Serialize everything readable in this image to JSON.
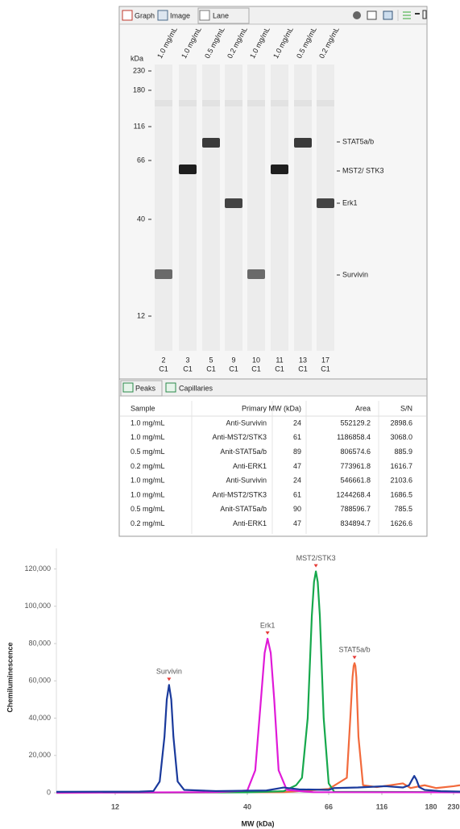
{
  "toolbar": {
    "tabs": [
      "Graph",
      "Image",
      "Lane"
    ]
  },
  "lane_view": {
    "unit": "kDa",
    "ladder": [
      230,
      180,
      116,
      66,
      40,
      12
    ],
    "lanes": [
      {
        "label": "1.0 mg/mL",
        "number": "2",
        "capillary": "C1"
      },
      {
        "label": "1.0 mg/mL",
        "number": "3",
        "capillary": "C1"
      },
      {
        "label": "0.5 mg/mL",
        "number": "5",
        "capillary": "C1"
      },
      {
        "label": "0.2 mg/mL",
        "number": "9",
        "capillary": "C1"
      },
      {
        "label": "1.0 mg/mL",
        "number": "10",
        "capillary": "C1"
      },
      {
        "label": "1.0 mg/mL",
        "number": "11",
        "capillary": "C1"
      },
      {
        "label": "0.5 mg/mL",
        "number": "13",
        "capillary": "C1"
      },
      {
        "label": "0.2 mg/mL",
        "number": "17",
        "capillary": "C1"
      }
    ],
    "targets": [
      "STAT5a/b",
      "MST2/ STK3",
      "Erk1",
      "Survivin"
    ]
  },
  "results": {
    "tabs": [
      "Peaks",
      "Capillaries"
    ],
    "columns": [
      "Sample",
      "Primary",
      "MW (kDa)",
      "Area",
      "S/N"
    ],
    "rows": [
      [
        "1.0 mg/mL",
        "Anti-Survivin",
        "24",
        "552129.2",
        "2898.6"
      ],
      [
        "1.0 mg/mL",
        "Anti-MST2/STK3",
        "61",
        "1186858.4",
        "3068.0"
      ],
      [
        "0.5 mg/mL",
        "Anit-STAT5a/b",
        "89",
        "806574.6",
        "885.9"
      ],
      [
        "0.2 mg/mL",
        "Anti-ERK1",
        "47",
        "773961.8",
        "1616.7"
      ],
      [
        "1.0 mg/mL",
        "Anti-Survivin",
        "24",
        "546661.8",
        "2103.6"
      ],
      [
        "1.0 mg/mL",
        "Anti-MST2/STK3",
        "61",
        "1244268.4",
        "1686.5"
      ],
      [
        "0.5 mg/mL",
        "Anit-STAT5a/b",
        "90",
        "788596.7",
        "785.5"
      ],
      [
        "0.2 mg/mL",
        "Anti-ERK1",
        "47",
        "834894.7",
        "1626.6"
      ]
    ]
  },
  "chart_data": {
    "type": "line",
    "x_label": "MW (kDa)",
    "y_label": "Chemiluminescence",
    "xlim": [
      7,
      246
    ],
    "xticks": [
      12,
      40,
      66,
      116,
      180,
      230
    ],
    "ylim": [
      0,
      125000
    ],
    "yticks": [
      0,
      {
        "value": 20000,
        "label": "20,000"
      },
      {
        "value": 40000,
        "label": "40,000"
      },
      {
        "value": 60000,
        "label": "60,000"
      },
      {
        "value": 80000,
        "label": "80,000"
      },
      {
        "value": 100000,
        "label": "100,000"
      },
      {
        "value": 120000,
        "label": "120,000"
      }
    ],
    "grid": false,
    "series": [
      {
        "name": "Survivin",
        "color": "#1a3a9c",
        "x": [
          7,
          15,
          17,
          18,
          18.8,
          19.2,
          19.6,
          20.0,
          20.4,
          21.2,
          22.5,
          30,
          45,
          50,
          55,
          66,
          70,
          90,
          120,
          140,
          148,
          152,
          155,
          158,
          162,
          170,
          200,
          246
        ],
        "values": [
          500,
          600,
          900,
          6000,
          30000,
          50000,
          57800,
          50000,
          30000,
          6000,
          1500,
          900,
          1200,
          2800,
          1800,
          1500,
          2500,
          2800,
          3500,
          2800,
          4000,
          7000,
          9000,
          7000,
          3000,
          1500,
          800,
          600
        ]
      },
      {
        "name": "Erk1",
        "color": "#e01ad8",
        "x": [
          7,
          30,
          40,
          42,
          43.5,
          44.5,
          45.3,
          46.2,
          47.2,
          48.5,
          51,
          60,
          246
        ],
        "values": [
          0,
          300,
          1200,
          12000,
          50000,
          75000,
          82600,
          75000,
          50000,
          12000,
          1500,
          300,
          200
        ]
      },
      {
        "name": "MST2/STK3",
        "color": "#16a84c",
        "x": [
          7,
          40,
          50,
          54,
          56,
          58,
          59.5,
          60.3,
          61,
          61.7,
          62.5,
          64,
          66,
          70,
          246
        ],
        "values": [
          0,
          200,
          800,
          4000,
          8000,
          40000,
          95000,
          113000,
          118700,
          113000,
          95000,
          40000,
          5000,
          500,
          300
        ]
      },
      {
        "name": "STAT5a/b",
        "color": "#f26a3c",
        "x": [
          7,
          50,
          66,
          80,
          83,
          85,
          86,
          86.8,
          87.6,
          88.5,
          90.5,
          95,
          110,
          140,
          150,
          170,
          190,
          230,
          246
        ],
        "values": [
          0,
          300,
          2000,
          8000,
          40000,
          62000,
          68000,
          69500,
          68000,
          62000,
          30000,
          4000,
          3000,
          5000,
          2500,
          4000,
          2500,
          3500,
          4000
        ]
      }
    ]
  }
}
